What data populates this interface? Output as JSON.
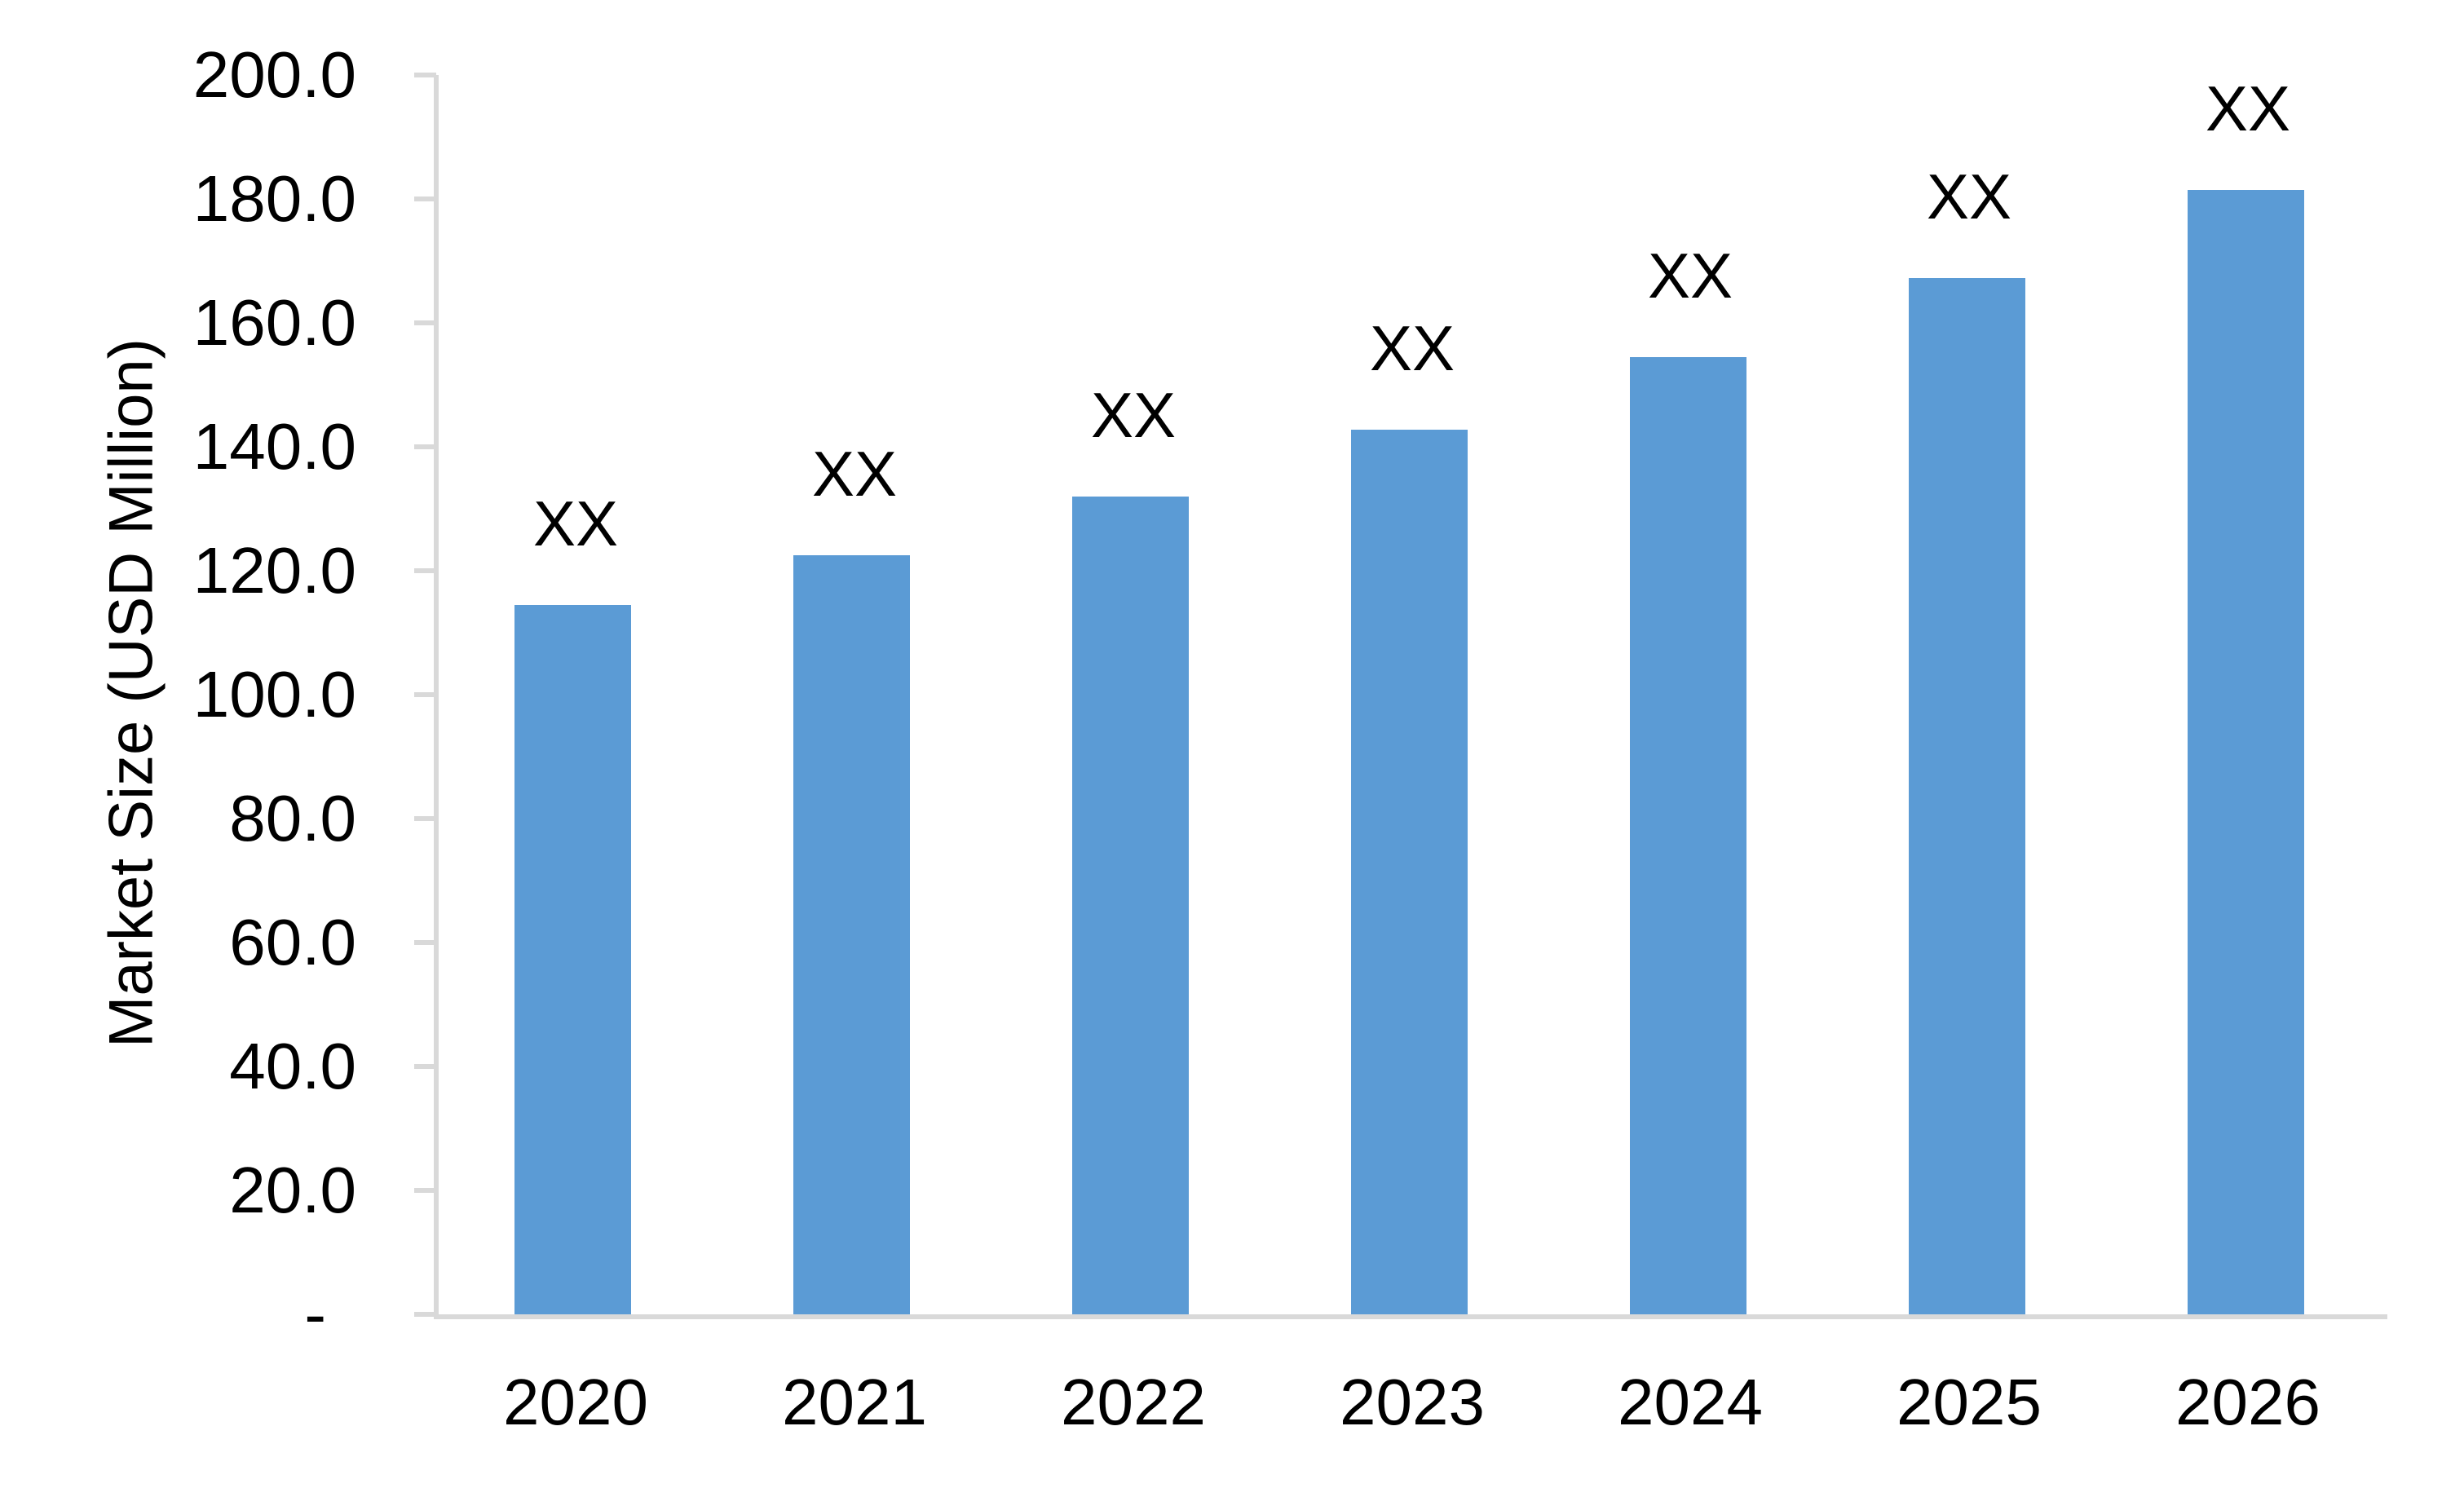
{
  "chart_data": {
    "type": "bar",
    "title": "",
    "categories": [
      "2020",
      "2021",
      "2022",
      "2023",
      "2024",
      "2025",
      "2026"
    ],
    "values": [
      114.5,
      122.5,
      132.0,
      142.8,
      154.5,
      167.3,
      181.5
    ],
    "bar_labels": [
      "XX",
      "XX",
      "XX",
      "XX",
      "XX",
      "XX",
      "XX"
    ],
    "xlabel": "",
    "ylabel": "Market Size (USD Million)",
    "ylim": [
      0,
      200
    ],
    "ytick_step": 20,
    "ytick_labels": [
      "-",
      "20.0",
      "40.0",
      "60.0",
      "80.0",
      "100.0",
      "120.0",
      "140.0",
      "160.0",
      "180.0",
      "200.0"
    ],
    "grid": false,
    "legend": "none",
    "colors": {
      "bar": "#5B9BD5",
      "axis": "#D9D9D9",
      "text": "#000000",
      "background": "#FFFFFF"
    }
  }
}
